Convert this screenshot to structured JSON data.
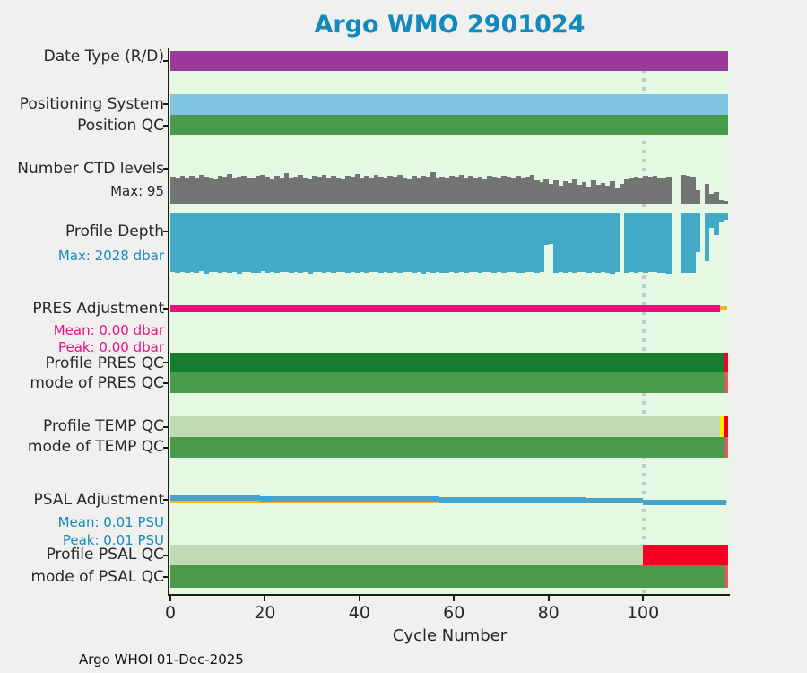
{
  "title": "Argo WMO 2901024",
  "footer": "Argo WHOI 01-Dec-2025",
  "chart_data": {
    "type": "bar",
    "subtype": "multi-strip status timeline (one strip per metric vs cycle number)",
    "xlabel": "Cycle Number",
    "x_ticks": [
      0,
      20,
      40,
      60,
      80,
      100
    ],
    "xlim": [
      0,
      118
    ],
    "grid": false,
    "marker_line_cycle": 100,
    "colors": {
      "title": "#1489bd",
      "plot_background": "#e4f8e3",
      "page_background": "#f0f0ee",
      "dotted_line": "#c9c9c9",
      "purple": "#9c3a9b",
      "light_blue": "#80c5e1",
      "medium_green": "#4a9a4c",
      "dark_green": "#157d2d",
      "pale_green": "#bedbb4",
      "gray_bars": "#747474",
      "depth_blue": "#42a9c6",
      "magenta": "#ed0f82",
      "orange": "#f7b32a",
      "yellow": "#fced00",
      "bright_red": "#f50025",
      "light_red": "#f8545c",
      "psal_line_blue": "#46a4c8"
    },
    "rows": [
      {
        "id": "date_type",
        "label": "Date Type (R/D)",
        "kind": "fill",
        "segments": [
          {
            "from": 0,
            "to": 118,
            "color": "#9c3a9b"
          }
        ]
      },
      {
        "id": "positioning_system",
        "label": "Positioning System",
        "kind": "fill",
        "segments": [
          {
            "from": 0,
            "to": 118,
            "color": "#80c5e1"
          }
        ]
      },
      {
        "id": "position_qc",
        "label": "Position QC",
        "kind": "fill",
        "segments": [
          {
            "from": 0,
            "to": 118,
            "color": "#4a9a4c"
          }
        ]
      },
      {
        "id": "ctd_levels",
        "label": "Number CTD levels",
        "sublabel": "Max: 95",
        "kind": "bars-up",
        "color": "#747474",
        "max_value": 95,
        "values": [
          82,
          78,
          85,
          80,
          84,
          79,
          88,
          83,
          80,
          77,
          85,
          81,
          90,
          79,
          83,
          86,
          80,
          78,
          84,
          88,
          81,
          77,
          85,
          80,
          92,
          79,
          83,
          87,
          80,
          76,
          84,
          81,
          88,
          79,
          85,
          80,
          77,
          86,
          82,
          90,
          79,
          84,
          80,
          87,
          82,
          78,
          85,
          81,
          88,
          80,
          76,
          84,
          79,
          86,
          82,
          95,
          80,
          83,
          78,
          85,
          81,
          87,
          79,
          84,
          80,
          82,
          77,
          85,
          83,
          79,
          86,
          81,
          78,
          84,
          80,
          83,
          88,
          72,
          65,
          74,
          60,
          70,
          55,
          68,
          62,
          73,
          58,
          66,
          52,
          70,
          57,
          64,
          55,
          68,
          48,
          60,
          75,
          80,
          83,
          79,
          85,
          81,
          84,
          80,
          78,
          82,
          0,
          0,
          88,
          85,
          83,
          42,
          0,
          60,
          30,
          35,
          12,
          8
        ]
      },
      {
        "id": "profile_depth",
        "label": "Profile Depth",
        "sublabel": "Max: 2028 dbar",
        "kind": "bars-down",
        "color": "#42a9c6",
        "max_value": 2028,
        "values": [
          1980,
          2000,
          1960,
          2010,
          1975,
          1995,
          1950,
          2020,
          1985,
          1965,
          2005,
          1978,
          1992,
          1960,
          2015,
          1982,
          1970,
          2000,
          1988,
          1955,
          1998,
          1975,
          2010,
          1962,
          1985,
          2002,
          1970,
          1990,
          1958,
          2018,
          1980,
          1968,
          2008,
          1975,
          1995,
          1960,
          1985,
          2012,
          1972,
          1988,
          1965,
          2000,
          1982,
          1958,
          2010,
          1978,
          1992,
          1968,
          2005,
          1985,
          1962,
          1998,
          1975,
          2015,
          1980,
          1995,
          1958,
          1988,
          2002,
          1970,
          1992,
          1978,
          2008,
          1965,
          1985,
          2000,
          1972,
          1958,
          1995,
          1982,
          2010,
          1975,
          1968,
          1990,
          2005,
          1960,
          1985,
          1998,
          1978,
          1060,
          1040,
          1988,
          1972,
          2000,
          1965,
          1992,
          1980,
          1958,
          2005,
          1975,
          1995,
          1968,
          1988,
          2028,
          1978,
          0,
          1992,
          1985,
          2000,
          1970,
          1990,
          1982,
          1965,
          1998,
          2000,
          2028,
          0,
          0,
          2010,
          1990,
          2000,
          1300,
          0,
          1620,
          520,
          750,
          290,
          250
        ]
      },
      {
        "id": "pres_adjustment",
        "label": "PRES Adjustment",
        "sublabels": [
          "Mean: 0.00 dbar",
          "Peak: 0.00 dbar"
        ],
        "kind": "fill",
        "segments": [
          {
            "from": 0,
            "to": 116.3,
            "color": "#ed0f82"
          },
          {
            "from": 116.3,
            "to": 117.9,
            "color": "#f7b32a",
            "variant": "thin"
          }
        ]
      },
      {
        "id": "profile_pres_qc",
        "label": "Profile PRES QC",
        "kind": "fill",
        "segments": [
          {
            "from": 0,
            "to": 117,
            "color": "#157d2d"
          },
          {
            "from": 117,
            "to": 118,
            "color": "#f50025"
          }
        ]
      },
      {
        "id": "mode_pres_qc",
        "label": "mode of PRES QC",
        "kind": "fill",
        "segments": [
          {
            "from": 0,
            "to": 117.2,
            "color": "#4a9a4c"
          },
          {
            "from": 117.2,
            "to": 118,
            "color": "#f8545c"
          }
        ]
      },
      {
        "id": "profile_temp_qc",
        "label": "Profile TEMP QC",
        "kind": "fill",
        "segments": [
          {
            "from": 0,
            "to": 116.3,
            "color": "#bedbb4"
          },
          {
            "from": 116.3,
            "to": 117.1,
            "color": "#fced00"
          },
          {
            "from": 117.1,
            "to": 118,
            "color": "#f50025"
          }
        ]
      },
      {
        "id": "mode_temp_qc",
        "label": "mode of TEMP QC",
        "kind": "fill",
        "segments": [
          {
            "from": 0,
            "to": 117.2,
            "color": "#4a9a4c"
          },
          {
            "from": 117.2,
            "to": 118,
            "color": "#f8545c"
          }
        ]
      },
      {
        "id": "psal_adjustment",
        "label": "PSAL Adjustment",
        "sublabels": [
          "Mean: 0.01 PSU",
          "Peak: 0.01 PSU"
        ],
        "kind": "adj-line",
        "zero_line_color": "#f7b32a",
        "line_color": "#46a4c8",
        "line_segments": [
          {
            "from": 0,
            "to": 19,
            "top": 552
          },
          {
            "from": 19,
            "to": 57,
            "top": 553
          },
          {
            "from": 57,
            "to": 88,
            "top": 554
          },
          {
            "from": 88,
            "to": 100,
            "top": 555
          },
          {
            "from": 100,
            "to": 117.6,
            "top": 557
          }
        ]
      },
      {
        "id": "profile_psal_qc",
        "label": "Profile PSAL QC",
        "kind": "fill",
        "segments": [
          {
            "from": 0,
            "to": 100,
            "color": "#bedbb4"
          },
          {
            "from": 100,
            "to": 118,
            "color": "#f50025"
          }
        ]
      },
      {
        "id": "mode_psal_qc",
        "label": "mode of PSAL QC",
        "kind": "fill",
        "segments": [
          {
            "from": 0,
            "to": 117.2,
            "color": "#4a9a4c"
          },
          {
            "from": 117.2,
            "to": 118,
            "color": "#f8545c"
          }
        ]
      }
    ]
  }
}
